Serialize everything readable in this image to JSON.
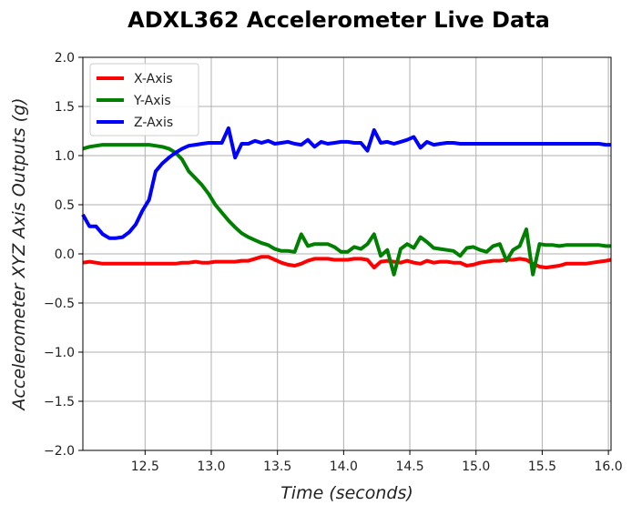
{
  "chart_data": {
    "type": "line",
    "title": "ADXL362 Accelerometer Live Data",
    "xlabel": "Time (seconds)",
    "ylabel": "Accelerometer XYZ Axis Outputs (g)",
    "xlim": [
      12.03,
      16.02
    ],
    "ylim": [
      -2.0,
      2.0
    ],
    "xticks": [
      12.5,
      13.0,
      13.5,
      14.0,
      14.5,
      15.0,
      15.5,
      16.0
    ],
    "xtick_labels": [
      "12.5",
      "13.0",
      "13.5",
      "14.0",
      "14.5",
      "15.0",
      "15.5",
      "16.0"
    ],
    "yticks": [
      -2.0,
      -1.5,
      -1.0,
      -0.5,
      0.0,
      0.5,
      1.0,
      1.5,
      2.0
    ],
    "ytick_labels": [
      "−2.0",
      "−1.5",
      "−1.0",
      "−0.5",
      "0.0",
      "0.5",
      "1.0",
      "1.5",
      "2.0"
    ],
    "grid": true,
    "legend_position": "top-left",
    "x": [
      12.03,
      12.08,
      12.13,
      12.18,
      12.23,
      12.28,
      12.33,
      12.38,
      12.43,
      12.48,
      12.53,
      12.58,
      12.63,
      12.68,
      12.73,
      12.78,
      12.83,
      12.88,
      12.93,
      12.98,
      13.03,
      13.08,
      13.13,
      13.18,
      13.23,
      13.28,
      13.33,
      13.38,
      13.43,
      13.48,
      13.53,
      13.58,
      13.63,
      13.68,
      13.73,
      13.78,
      13.83,
      13.88,
      13.93,
      13.98,
      14.03,
      14.08,
      14.13,
      14.18,
      14.23,
      14.28,
      14.33,
      14.38,
      14.43,
      14.48,
      14.53,
      14.58,
      14.63,
      14.68,
      14.73,
      14.78,
      14.83,
      14.88,
      14.93,
      14.98,
      15.03,
      15.08,
      15.13,
      15.18,
      15.23,
      15.28,
      15.33,
      15.38,
      15.43,
      15.48,
      15.53,
      15.58,
      15.63,
      15.68,
      15.73,
      15.78,
      15.83,
      15.88,
      15.93,
      15.98,
      16.02
    ],
    "series": [
      {
        "name": "X-Axis",
        "color": "#ff0000",
        "values": [
          -0.09,
          -0.08,
          -0.09,
          -0.1,
          -0.1,
          -0.1,
          -0.1,
          -0.1,
          -0.1,
          -0.1,
          -0.1,
          -0.1,
          -0.1,
          -0.1,
          -0.1,
          -0.09,
          -0.09,
          -0.08,
          -0.09,
          -0.09,
          -0.08,
          -0.08,
          -0.08,
          -0.08,
          -0.07,
          -0.07,
          -0.05,
          -0.03,
          -0.03,
          -0.06,
          -0.09,
          -0.11,
          -0.12,
          -0.1,
          -0.07,
          -0.05,
          -0.05,
          -0.05,
          -0.06,
          -0.06,
          -0.06,
          -0.05,
          -0.05,
          -0.06,
          -0.14,
          -0.08,
          -0.07,
          -0.08,
          -0.09,
          -0.07,
          -0.09,
          -0.1,
          -0.07,
          -0.09,
          -0.08,
          -0.08,
          -0.09,
          -0.09,
          -0.12,
          -0.11,
          -0.09,
          -0.08,
          -0.07,
          -0.07,
          -0.06,
          -0.06,
          -0.05,
          -0.06,
          -0.1,
          -0.13,
          -0.14,
          -0.13,
          -0.12,
          -0.1,
          -0.1,
          -0.1,
          -0.1,
          -0.09,
          -0.08,
          -0.07,
          -0.06
        ]
      },
      {
        "name": "Y-Axis",
        "color": "#008000",
        "values": [
          1.07,
          1.09,
          1.1,
          1.11,
          1.11,
          1.11,
          1.11,
          1.11,
          1.11,
          1.11,
          1.11,
          1.1,
          1.09,
          1.07,
          1.03,
          0.96,
          0.84,
          0.77,
          0.7,
          0.61,
          0.5,
          0.42,
          0.34,
          0.27,
          0.21,
          0.17,
          0.14,
          0.11,
          0.09,
          0.05,
          0.03,
          0.03,
          0.02,
          0.2,
          0.08,
          0.1,
          0.1,
          0.1,
          0.07,
          0.02,
          0.02,
          0.07,
          0.05,
          0.1,
          0.2,
          -0.02,
          0.04,
          -0.21,
          0.05,
          0.1,
          0.06,
          0.17,
          0.12,
          0.06,
          0.05,
          0.04,
          0.03,
          -0.02,
          0.06,
          0.07,
          0.04,
          0.02,
          0.08,
          0.1,
          -0.07,
          0.04,
          0.08,
          0.25,
          -0.21,
          0.1,
          0.09,
          0.09,
          0.08,
          0.09,
          0.09,
          0.09,
          0.09,
          0.09,
          0.09,
          0.08,
          0.08
        ]
      },
      {
        "name": "Z-Axis",
        "color": "#0000ff",
        "values": [
          0.4,
          0.28,
          0.28,
          0.2,
          0.16,
          0.16,
          0.17,
          0.22,
          0.3,
          0.44,
          0.55,
          0.84,
          0.92,
          0.98,
          1.03,
          1.07,
          1.1,
          1.11,
          1.12,
          1.13,
          1.13,
          1.13,
          1.28,
          0.98,
          1.12,
          1.12,
          1.15,
          1.13,
          1.15,
          1.12,
          1.13,
          1.14,
          1.12,
          1.11,
          1.16,
          1.09,
          1.14,
          1.12,
          1.13,
          1.14,
          1.14,
          1.13,
          1.13,
          1.05,
          1.26,
          1.13,
          1.14,
          1.12,
          1.14,
          1.16,
          1.19,
          1.08,
          1.14,
          1.11,
          1.12,
          1.13,
          1.13,
          1.12,
          1.12,
          1.12,
          1.12,
          1.12,
          1.12,
          1.12,
          1.12,
          1.12,
          1.12,
          1.12,
          1.12,
          1.12,
          1.12,
          1.12,
          1.12,
          1.12,
          1.12,
          1.12,
          1.12,
          1.12,
          1.12,
          1.11,
          1.11
        ]
      }
    ]
  }
}
